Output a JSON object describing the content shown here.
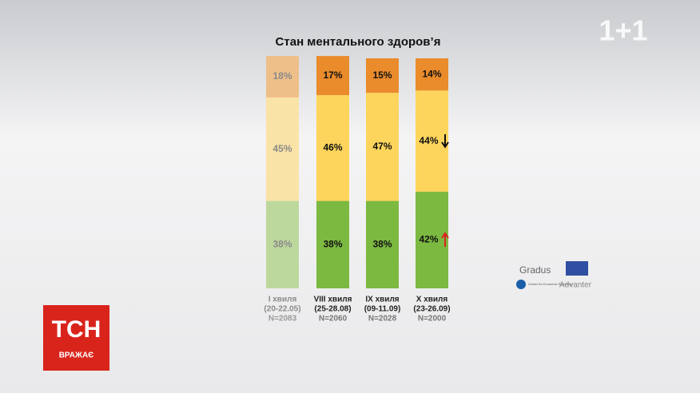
{
  "chart_data": {
    "type": "stacked-bar",
    "title": "Стан ментального здоров’я",
    "categories": [
      "I хвиля",
      "VIII хвиля",
      "IX хвиля",
      "X хвиля"
    ],
    "category_dates": [
      "(20-22.05)",
      "(25-28.08)",
      "(09-11.09)",
      "(23-26.09)"
    ],
    "category_n": [
      "N=2083",
      "N=2060",
      "N=2028",
      "N=2000"
    ],
    "ylim": [
      0,
      100
    ],
    "series": [
      {
        "colors": [
          "#bdd89c",
          "#7cb941",
          "#7cb941",
          "#7cb941"
        ],
        "values": [
          38,
          38,
          38,
          42
        ],
        "value_labels": [
          "38%",
          "38%",
          "38%",
          "42%"
        ]
      },
      {
        "colors": [
          "#fae3a6",
          "#fdd55c",
          "#fdd55c",
          "#fdd55c"
        ],
        "values": [
          45,
          46,
          47,
          44
        ],
        "value_labels": [
          "45%",
          "46%",
          "47%",
          "44%"
        ]
      },
      {
        "colors": [
          "#efbf89",
          "#ea8b2c",
          "#ea8b2c",
          "#ea8b2c"
        ],
        "values": [
          18,
          17,
          15,
          14
        ],
        "value_labels": [
          "18%",
          "17%",
          "15%",
          "14%"
        ]
      }
    ]
  },
  "overlay": {
    "channel_logo": "1+1",
    "show": "ТСН",
    "show_slogan": "ВРАЖАЄ",
    "partner_1": "Gradus",
    "partner_2": "Center for Economic Recovery",
    "partner_3": "Advanter"
  }
}
